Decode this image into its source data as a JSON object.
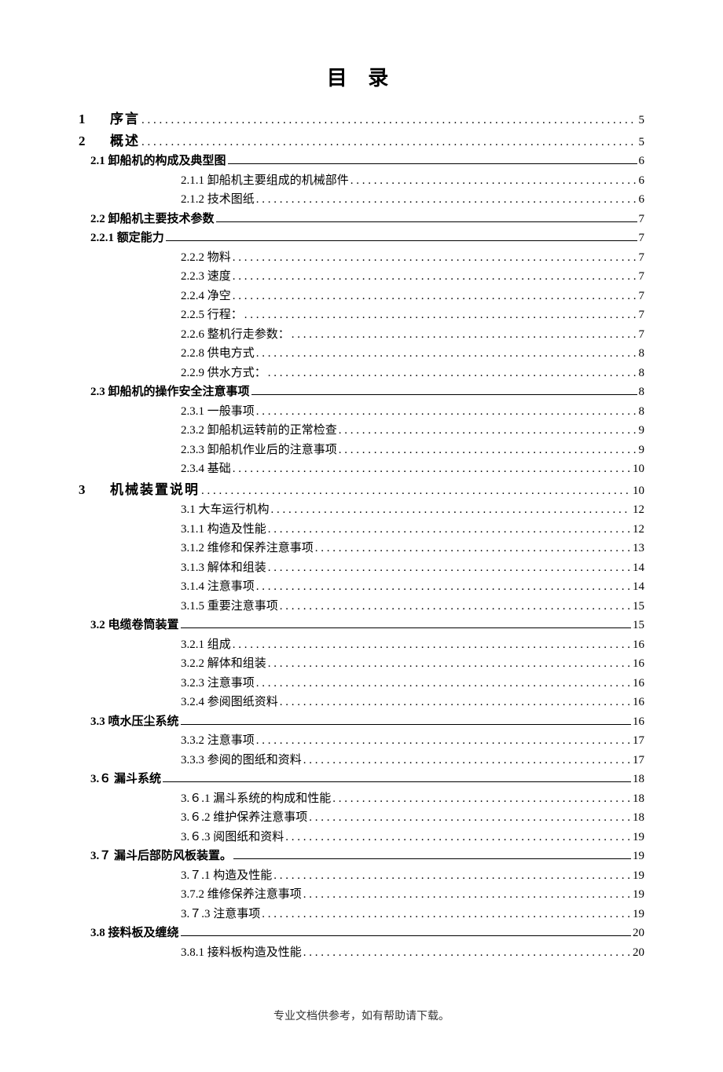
{
  "title": "目 录",
  "footer": "专业文档供参考，如有帮助请下载。",
  "entries": [
    {
      "level": "level-1",
      "num": "1",
      "text": "序言",
      "page": "5",
      "leader": "dotted"
    },
    {
      "level": "level-1",
      "num": "2",
      "text": "概述",
      "page": "5",
      "leader": "dotted"
    },
    {
      "level": "level-2",
      "num": "2.1",
      "text": "卸船机的构成及典型图",
      "page": "6",
      "leader": "underlined"
    },
    {
      "level": "level-3",
      "num": "2.1.1",
      "text": "卸船机主要组成的机械部件",
      "page": "6",
      "leader": "dotted"
    },
    {
      "level": "level-3",
      "num": "2.1.2",
      "text": "技术图纸",
      "page": "6",
      "leader": "dotted"
    },
    {
      "level": "level-2",
      "num": "2.2",
      "text": "卸船机主要技术参数",
      "page": "7",
      "leader": "underlined"
    },
    {
      "level": "level-2b",
      "num": "2.2.1",
      "text": "额定能力",
      "page": "7",
      "leader": "underlined"
    },
    {
      "level": "level-3",
      "num": "2.2.2",
      "text": "物料",
      "page": "7",
      "leader": "dotted"
    },
    {
      "level": "level-3",
      "num": "2.2.3",
      "text": "速度",
      "page": "7",
      "leader": "dotted"
    },
    {
      "level": "level-3",
      "num": "2.2.4",
      "text": "净空",
      "page": "7",
      "leader": "dotted"
    },
    {
      "level": "level-3",
      "num": "2.2.5",
      "text": "行程：",
      "page": "7",
      "leader": "dotted"
    },
    {
      "level": "level-3",
      "num": "2.2.6",
      "text": "整机行走参数：",
      "page": "7",
      "leader": "dotted"
    },
    {
      "level": "level-3",
      "num": "2.2.8",
      "text": "供电方式",
      "page": "8",
      "leader": "dotted"
    },
    {
      "level": "level-3",
      "num": "2.2.9",
      "text": "供水方式：",
      "page": "8",
      "leader": "dotted"
    },
    {
      "level": "level-2",
      "num": "2.3",
      "text": "卸船机的操作安全注意事项",
      "page": "8",
      "leader": "underlined"
    },
    {
      "level": "level-3",
      "num": "2.3.1",
      "text": "一般事项",
      "page": "8",
      "leader": "dotted"
    },
    {
      "level": "level-3",
      "num": "2.3.2",
      "text": "卸船机运转前的正常检查",
      "page": "9",
      "leader": "dotted"
    },
    {
      "level": "level-3",
      "num": "2.3.3",
      "text": "卸船机作业后的注意事项",
      "page": "9",
      "leader": "dotted"
    },
    {
      "level": "level-3",
      "num": "2.3.4",
      "text": "基础",
      "page": "10",
      "leader": "dotted"
    },
    {
      "level": "level-1",
      "num": "3",
      "text": "机械装置说明",
      "page": "10",
      "leader": "dotted"
    },
    {
      "level": "level-3",
      "num": "3.1",
      "text": "大车运行机构",
      "page": "12",
      "leader": "dotted"
    },
    {
      "level": "level-3",
      "num": "3.1.1",
      "text": "构造及性能",
      "page": "12",
      "leader": "dotted"
    },
    {
      "level": "level-3",
      "num": "3.1.2",
      "text": "维修和保养注意事项",
      "page": "13",
      "leader": "dotted"
    },
    {
      "level": "level-3",
      "num": "3.1.3",
      "text": "解体和组装",
      "page": "14",
      "leader": "dotted"
    },
    {
      "level": "level-3",
      "num": "3.1.4",
      "text": "注意事项",
      "page": "14",
      "leader": "dotted"
    },
    {
      "level": "level-3",
      "num": "3.1.5",
      "text": "重要注意事项",
      "page": "15",
      "leader": "dotted"
    },
    {
      "level": "level-2",
      "num": "3.2",
      "text": "电缆卷筒装置",
      "page": "15",
      "leader": "underlined"
    },
    {
      "level": "level-3",
      "num": "3.2.1",
      "text": "组成",
      "page": "16",
      "leader": "dotted"
    },
    {
      "level": "level-3",
      "num": "3.2.2",
      "text": "解体和组装",
      "page": "16",
      "leader": "dotted"
    },
    {
      "level": "level-3",
      "num": "3.2.3",
      "text": "注意事项",
      "page": "16",
      "leader": "dotted"
    },
    {
      "level": "level-3",
      "num": "3.2.4",
      "text": "参阅图纸资料",
      "page": "16",
      "leader": "dotted"
    },
    {
      "level": "level-2",
      "num": "3.3",
      "text": "喷水压尘系统",
      "page": "16",
      "leader": "underlined"
    },
    {
      "level": "level-3",
      "num": "3.3.2",
      "text": " 注意事项",
      "page": "17",
      "leader": "dotted"
    },
    {
      "level": "level-3",
      "num": "3.3.3",
      "text": "参阅的图纸和资料",
      "page": "17",
      "leader": "dotted"
    },
    {
      "level": "level-2",
      "num": "3.６",
      "text": "漏斗系统",
      "page": "18",
      "leader": "underlined"
    },
    {
      "level": "level-3",
      "num": "3.６.1",
      "text": "漏斗系统的构成和性能",
      "page": "18",
      "leader": "dotted"
    },
    {
      "level": "level-3",
      "num": "3.６.2",
      "text": "维护保养注意事项",
      "page": "18",
      "leader": "dotted"
    },
    {
      "level": "level-3",
      "num": "3.６.3",
      "text": "阅图纸和资料",
      "page": "19",
      "leader": "dotted"
    },
    {
      "level": "level-2",
      "num": "3.７",
      "text": "漏斗后部防风板装置。",
      "page": "19",
      "leader": "underlined"
    },
    {
      "level": "level-3",
      "num": "3.７.1",
      "text": "构造及性能",
      "page": "19",
      "leader": "dotted"
    },
    {
      "level": "level-3",
      "num": "3.7.2",
      "text": "维修保养注意事项",
      "page": "19",
      "leader": "dotted"
    },
    {
      "level": "level-3",
      "num": "3.７.3",
      "text": "注意事项",
      "page": "19",
      "leader": "dotted"
    },
    {
      "level": "level-2",
      "num": "3.8",
      "text": "接料板及缠绕",
      "page": "20",
      "leader": "underlined"
    },
    {
      "level": "level-3",
      "num": "3.8.1",
      "text": "接料板构造及性能",
      "page": "20",
      "leader": "dotted"
    }
  ]
}
